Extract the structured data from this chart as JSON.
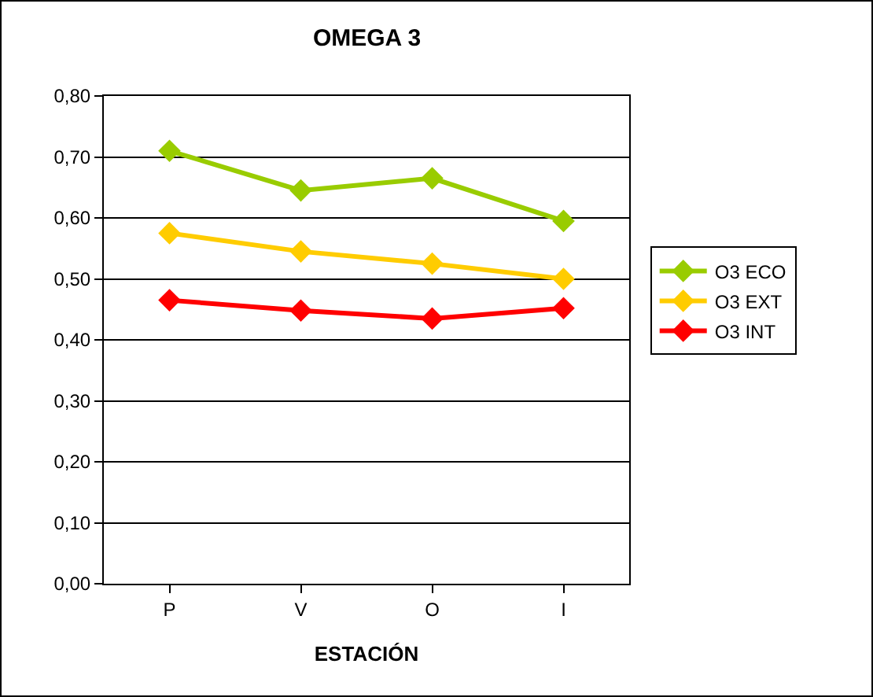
{
  "chart_data": {
    "type": "line",
    "title": "OMEGA 3",
    "xlabel": "ESTACIÓN",
    "categories": [
      "P",
      "V",
      "O",
      "I"
    ],
    "series": [
      {
        "name": "O3 ECO",
        "color": "#99cc00",
        "values": [
          0.71,
          0.645,
          0.665,
          0.595
        ]
      },
      {
        "name": "O3 EXT",
        "color": "#ffcc00",
        "values": [
          0.575,
          0.545,
          0.525,
          0.5
        ]
      },
      {
        "name": "O3 INT",
        "color": "#ff0000",
        "values": [
          0.465,
          0.448,
          0.435,
          0.452
        ]
      }
    ],
    "ylim": [
      0,
      0.8
    ],
    "yticks": [
      {
        "value": 0,
        "label": "0,00"
      },
      {
        "value": 0.1,
        "label": "0,10"
      },
      {
        "value": 0.2,
        "label": "0,20"
      },
      {
        "value": 0.3,
        "label": "0,30"
      },
      {
        "value": 0.4,
        "label": "0,40"
      },
      {
        "value": 0.5,
        "label": "0,50"
      },
      {
        "value": 0.6,
        "label": "0,60"
      },
      {
        "value": 0.7,
        "label": "0,70"
      },
      {
        "value": 0.8,
        "label": "0,80"
      }
    ],
    "grid": "y",
    "legend": "right",
    "marker": "diamond",
    "line_style": "solid"
  }
}
